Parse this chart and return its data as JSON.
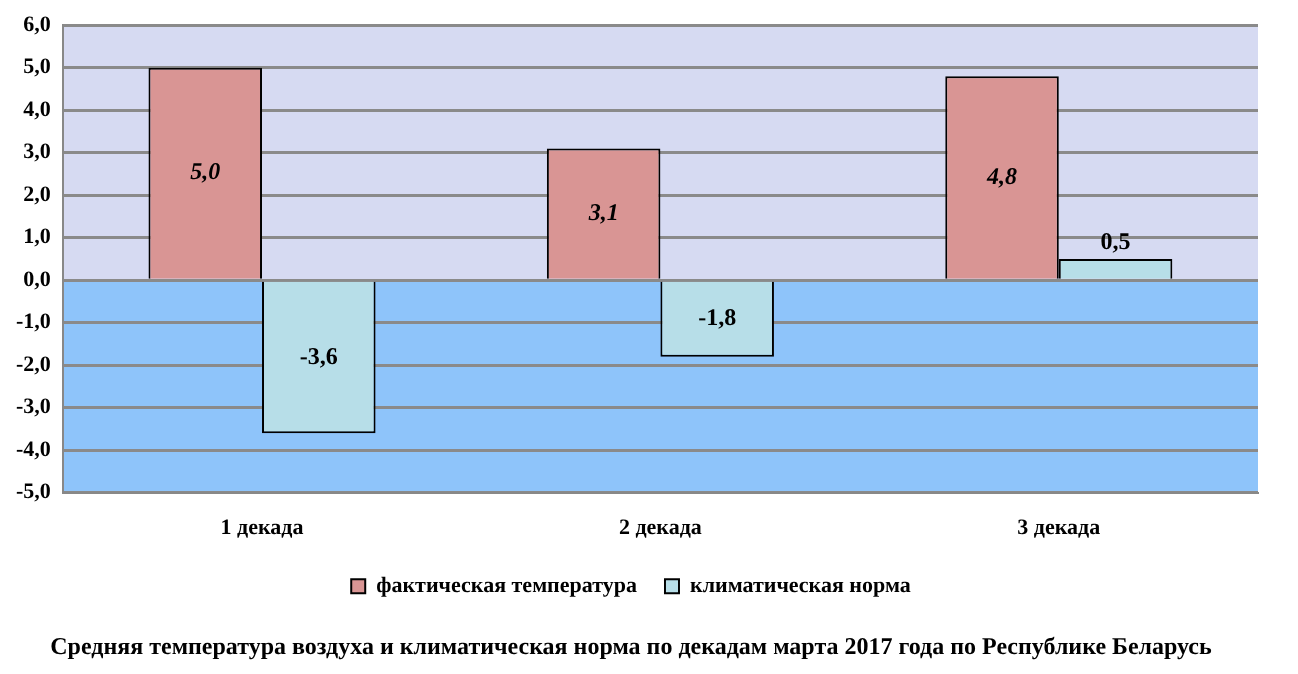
{
  "chart_data": {
    "type": "bar",
    "title": "Средняя температура воздуха и климатическая норма по декадам марта 2017 года по Республике Беларусь",
    "categories": [
      "1 декада",
      "2 декада",
      "3 декада"
    ],
    "series": [
      {
        "name": "фактическая температура",
        "color": "#d99594",
        "values": [
          5.0,
          3.1,
          4.8
        ],
        "value_labels": [
          "5,0",
          "3,1",
          "4,8"
        ]
      },
      {
        "name": "климатическая норма",
        "color": "#b7dee8",
        "values": [
          -3.6,
          -1.8,
          0.5
        ],
        "value_labels": [
          "-3,6",
          "-1,8",
          "0,5"
        ]
      }
    ],
    "ylim": [
      -5,
      6
    ],
    "yticks": [
      {
        "value": 6,
        "label": "6,0"
      },
      {
        "value": 5,
        "label": "5,0"
      },
      {
        "value": 4,
        "label": "4,0"
      },
      {
        "value": 3,
        "label": "3,0"
      },
      {
        "value": 2,
        "label": "2,0"
      },
      {
        "value": 1,
        "label": "1,0"
      },
      {
        "value": 0,
        "label": "0,0"
      },
      {
        "value": -1,
        "label": "-1,0"
      },
      {
        "value": -2,
        "label": "-2,0"
      },
      {
        "value": -3,
        "label": "-3,0"
      },
      {
        "value": -4,
        "label": "-4,0"
      },
      {
        "value": -5,
        "label": "-5,0"
      }
    ],
    "bands": [
      {
        "axis": "y",
        "from": 0,
        "to": 6,
        "color": "#d6daf2"
      },
      {
        "axis": "y",
        "from": -5,
        "to": 0,
        "color": "#8ec4fa"
      }
    ],
    "grid": "y",
    "legend": "bottom"
  }
}
